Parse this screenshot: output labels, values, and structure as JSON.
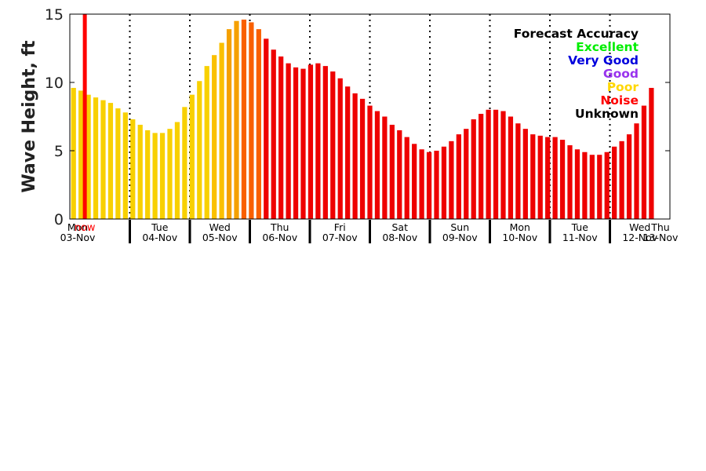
{
  "chart_data": {
    "type": "bar",
    "ylabel": "Wave Height, ft",
    "ylim": [
      0,
      15
    ],
    "yticks": [
      0,
      5,
      10,
      15
    ],
    "x_start": "2025-11-03T00:00",
    "x_end": "2025-11-13T00:00",
    "days": [
      {
        "dow": "Mon",
        "date": "03-Nov",
        "position": "2025-11-03T00:00"
      },
      {
        "dow": "Tue",
        "date": "04-Nov",
        "position": "2025-11-04T00:00"
      },
      {
        "dow": "Wed",
        "date": "05-Nov",
        "position": "2025-11-05T00:00"
      },
      {
        "dow": "Thu",
        "date": "06-Nov",
        "position": "2025-11-06T00:00"
      },
      {
        "dow": "Fri",
        "date": "07-Nov",
        "position": "2025-11-07T00:00"
      },
      {
        "dow": "Sat",
        "date": "08-Nov",
        "position": "2025-11-08T00:00"
      },
      {
        "dow": "Sun",
        "date": "09-Nov",
        "position": "2025-11-09T00:00"
      },
      {
        "dow": "Mon",
        "date": "10-Nov",
        "position": "2025-11-10T00:00"
      },
      {
        "dow": "Tue",
        "date": "11-Nov",
        "position": "2025-11-11T00:00"
      },
      {
        "dow": "Wed",
        "date": "12-Nov",
        "position": "2025-11-12T00:00"
      },
      {
        "dow": "Thu",
        "date": "13-Nov",
        "position": "2025-11-13T00:00"
      }
    ],
    "now": {
      "label": "now",
      "time": "2025-11-03T06:00",
      "color": "#ff0000"
    },
    "legend": {
      "placement": "top-right",
      "title": "Forecast Accuracy",
      "title_color": "#000000",
      "entries": [
        {
          "label": "Excellent",
          "color": "#00ee00"
        },
        {
          "label": "Very Good",
          "color": "#0000dd"
        },
        {
          "label": "Good",
          "color": "#9933ee"
        },
        {
          "label": "Poor",
          "color": "#ffd700"
        },
        {
          "label": "Noise",
          "color": "#ff0000"
        },
        {
          "label": "Unknown",
          "color": "#000000"
        }
      ]
    },
    "category_colors": {
      "poor": "#f8d000",
      "transition": "#fac000",
      "orange": "#f5a000",
      "orange_red": "#f96000",
      "noise": "#ee0000"
    },
    "series": [
      {
        "name": "",
        "time_start": "2025-11-03T00:00",
        "step_hours": 3,
        "values": [
          9.6,
          9.4,
          9.1,
          8.9,
          8.7,
          8.5,
          8.1,
          7.8,
          7.3,
          6.9,
          6.5,
          6.3,
          6.3,
          6.6,
          7.1,
          8.2,
          9.1,
          10.1,
          11.2,
          12.0,
          12.9,
          13.9,
          14.5,
          14.6,
          14.4,
          13.9,
          13.2,
          12.4,
          11.9,
          11.4,
          11.1,
          11.0,
          11.3,
          11.4,
          11.2,
          10.8,
          10.3,
          9.7,
          9.2,
          8.8,
          8.3,
          7.9,
          7.5,
          6.9,
          6.5,
          6.0,
          5.5,
          5.1,
          4.9,
          5.0,
          5.3,
          5.7,
          6.2,
          6.6,
          7.3,
          7.7,
          8.0,
          8.0,
          7.9,
          7.5,
          7.0,
          6.6,
          6.2,
          6.1,
          6.0,
          6.0,
          5.8,
          5.4,
          5.1,
          4.9,
          4.7,
          4.7,
          4.9,
          5.3,
          5.7,
          6.2,
          7.0,
          8.3,
          9.6
        ],
        "categories": [
          "poor",
          "poor",
          "poor",
          "poor",
          "poor",
          "poor",
          "poor",
          "poor",
          "poor",
          "poor",
          "poor",
          "poor",
          "poor",
          "poor",
          "poor",
          "poor",
          "poor",
          "poor",
          "poor",
          "transition",
          "transition",
          "orange",
          "orange",
          "orange_red",
          "orange_red",
          "orange_red",
          "noise",
          "noise",
          "noise",
          "noise",
          "noise",
          "noise",
          "noise",
          "noise",
          "noise",
          "noise",
          "noise",
          "noise",
          "noise",
          "noise",
          "noise",
          "noise",
          "noise",
          "noise",
          "noise",
          "noise",
          "noise",
          "noise",
          "noise",
          "noise",
          "noise",
          "noise",
          "noise",
          "noise",
          "noise",
          "noise",
          "noise",
          "noise",
          "noise",
          "noise",
          "noise",
          "noise",
          "noise",
          "noise",
          "noise",
          "noise",
          "noise",
          "noise",
          "noise",
          "noise",
          "noise",
          "noise",
          "noise",
          "noise",
          "noise",
          "noise",
          "noise",
          "noise",
          "noise"
        ]
      }
    ],
    "grid": {
      "vertical_day_lines": "dotted",
      "horizontal": false
    }
  }
}
